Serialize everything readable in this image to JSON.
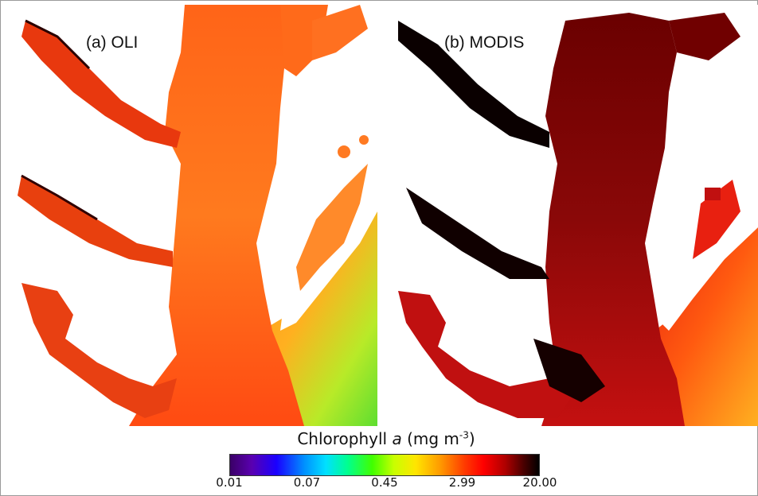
{
  "panels": [
    {
      "label": "(a) OLI",
      "sensor": "OLI"
    },
    {
      "label": "(b) MODIS",
      "sensor": "MODIS"
    }
  ],
  "legend": {
    "title_prefix": "Chlorophyll ",
    "title_variable": "a",
    "title_units_prefix": "  (mg m",
    "title_units_exponent": "-3",
    "title_units_suffix": ")",
    "ticks": [
      "0.01",
      "0.07",
      "0.45",
      "2.99",
      "20.00"
    ],
    "colormap": [
      "#3a0066",
      "#1a00ff",
      "#00e0ff",
      "#40ff00",
      "#ffe600",
      "#ff9a00",
      "#ff0000",
      "#4a0000",
      "#000000"
    ]
  },
  "colors": {
    "land": "#ffffff",
    "oli_estuary": "#ff6a1a",
    "oli_ocean_south": "#8fe02a",
    "modis_estuary": "#b01010",
    "modis_dark": "#1a0000"
  }
}
